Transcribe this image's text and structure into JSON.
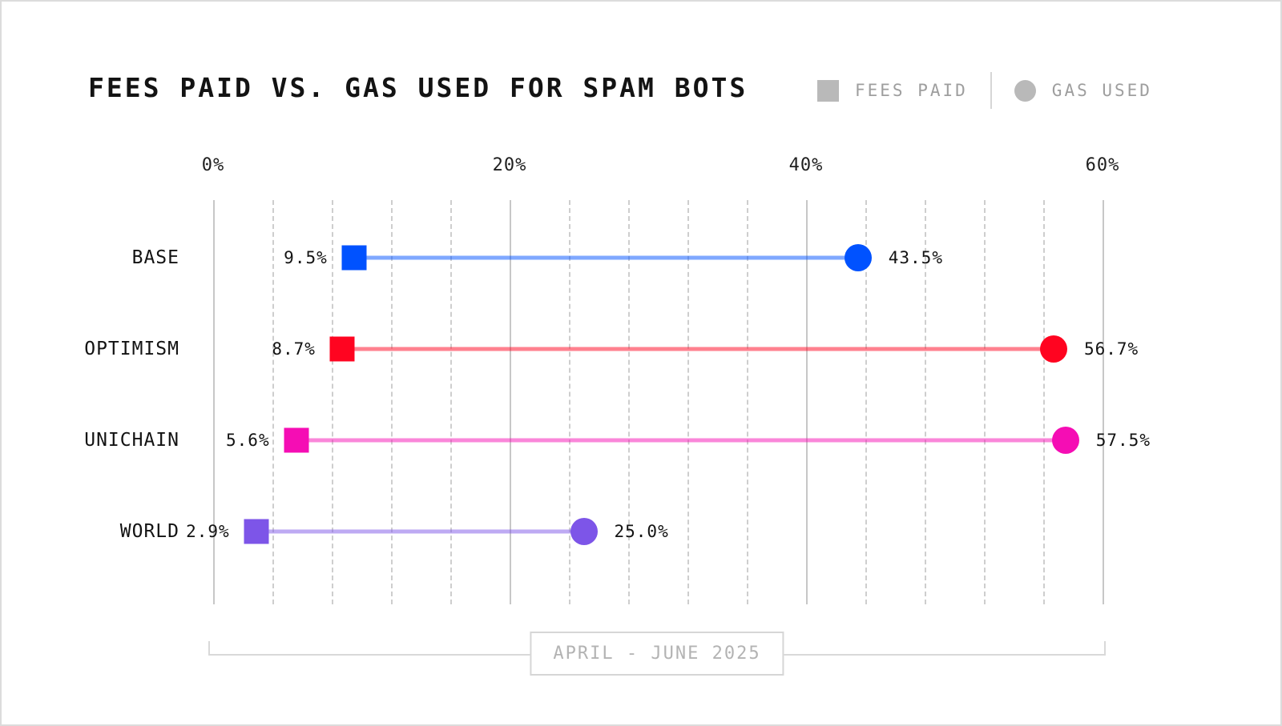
{
  "page": {
    "title": "FEES PAID VS. GAS USED FOR SPAM BOTS"
  },
  "legend": {
    "items": [
      {
        "shape": "square",
        "label": "FEES PAID"
      },
      {
        "shape": "circle",
        "label": "GAS USED"
      }
    ]
  },
  "chart_data": {
    "type": "dumbbell",
    "title": "FEES PAID VS. GAS USED FOR SPAM BOTS",
    "x_unit": "%",
    "xlim": [
      0,
      60
    ],
    "x_major_ticks": [
      {
        "value": 0,
        "label": "0%"
      },
      {
        "value": 20,
        "label": "20%"
      },
      {
        "value": 40,
        "label": "40%"
      },
      {
        "value": 60,
        "label": "60%"
      }
    ],
    "x_minor_step": 4,
    "grid": "vertical only; solid lines at major ticks, dashed lines at 4% minor steps",
    "legend_position": "top-right",
    "series": [
      {
        "name": "FEES PAID",
        "marker": "square"
      },
      {
        "name": "GAS USED",
        "marker": "circle"
      }
    ],
    "rows": [
      {
        "category": "BASE",
        "fees_paid": 9.5,
        "fees_paid_label": "9.5%",
        "gas_used": 43.5,
        "gas_used_label": "43.5%",
        "color": "#0052ff",
        "line_color": "rgba(0,82,255,0.5)"
      },
      {
        "category": "OPTIMISM",
        "fees_paid": 8.7,
        "fees_paid_label": "8.7%",
        "gas_used": 56.7,
        "gas_used_label": "56.7%",
        "color": "#ff0420",
        "line_color": "rgba(255,4,32,0.5)"
      },
      {
        "category": "UNICHAIN",
        "fees_paid": 5.6,
        "fees_paid_label": "5.6%",
        "gas_used": 57.5,
        "gas_used_label": "57.5%",
        "color": "#f50db4",
        "line_color": "rgba(245,13,180,0.5)"
      },
      {
        "category": "WORLD",
        "fees_paid": 2.9,
        "fees_paid_label": "2.9%",
        "gas_used": 25.0,
        "gas_used_label": "25.0%",
        "color": "#7d55e8",
        "line_color": "rgba(125,85,232,0.5)"
      }
    ],
    "footer_label": "APRIL - JUNE 2025"
  },
  "colors": {
    "background": "#ffffff",
    "canvas_border": "#dcdcdc",
    "legend_swatch": "#b9b9b9",
    "legend_text": "#9e9e9e",
    "grid_major": "#c7c7c7",
    "grid_minor": "#cecece",
    "axis_text": "#1f1f1f",
    "category_text": "#131313",
    "muted_text": "#b3b3b3"
  }
}
